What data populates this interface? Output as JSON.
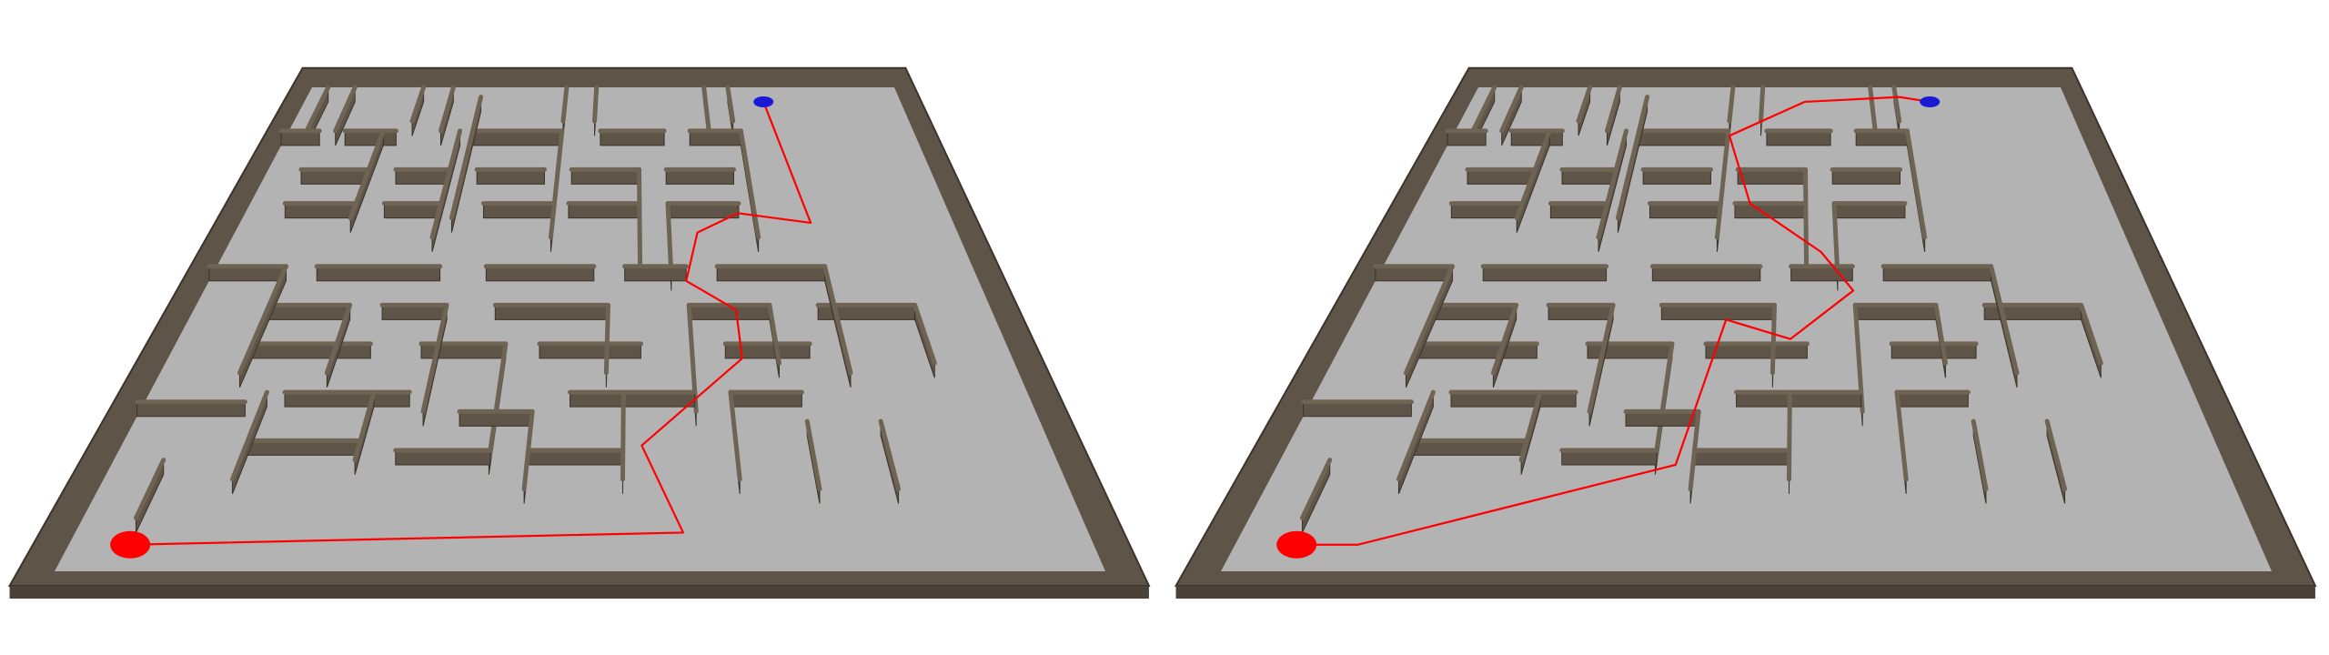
{
  "scene": {
    "background": "#ffffff",
    "floor_color": "#b3b3b3",
    "wall_color": "#5e5447",
    "wall_top_color": "#6f6454",
    "path_color": "#ff0000",
    "start_color": "#ff0000",
    "goal_color": "#1a1ad6"
  },
  "panels": [
    {
      "id": "left",
      "description_icon": "maze-board",
      "start_marker": "start-point",
      "goal_marker": "goal-point"
    },
    {
      "id": "right",
      "description_icon": "maze-board",
      "start_marker": "start-point",
      "goal_marker": "goal-point"
    }
  ]
}
